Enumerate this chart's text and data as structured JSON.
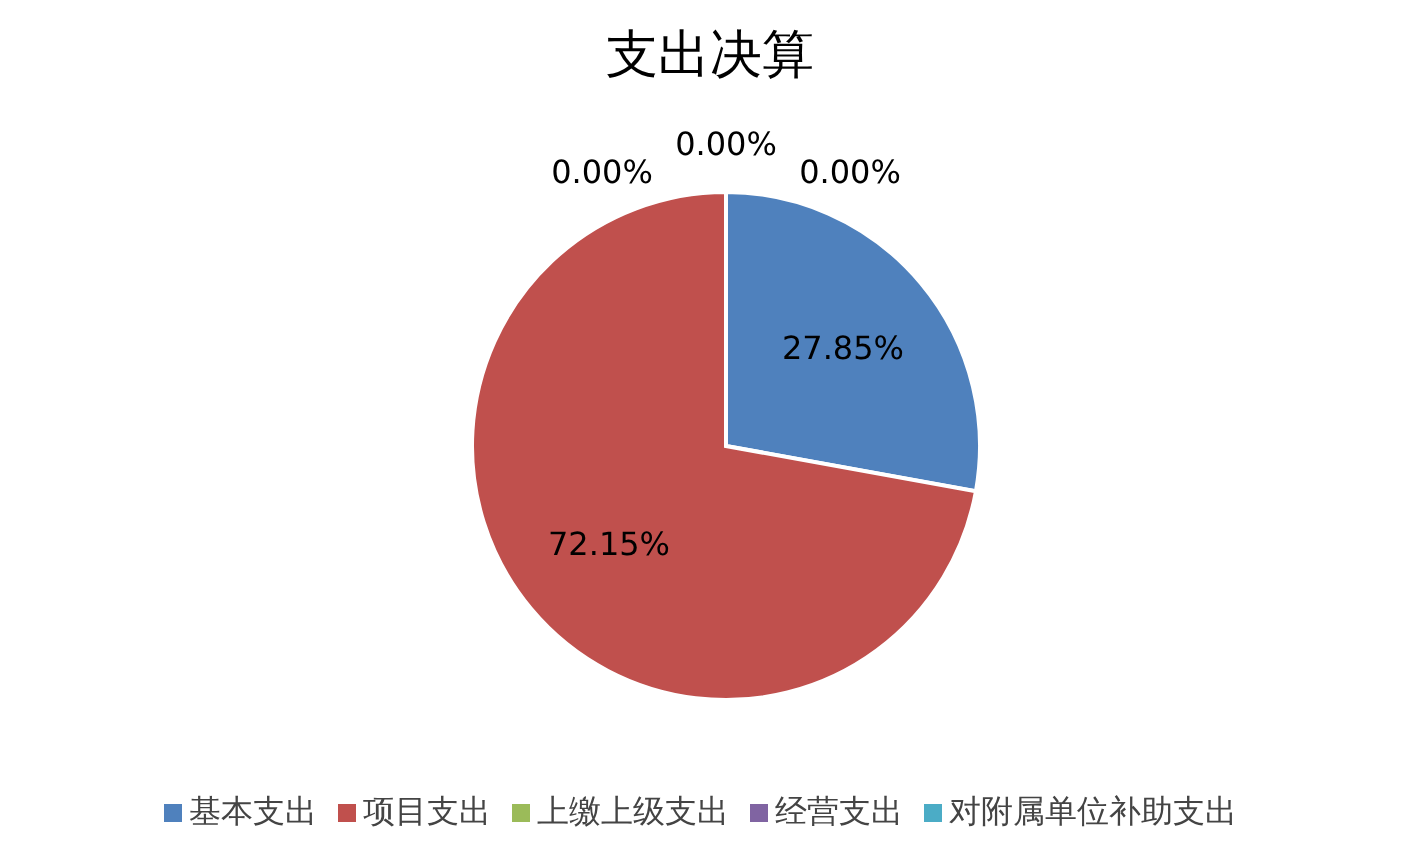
{
  "chart_data": {
    "type": "pie",
    "title": "支出决算",
    "categories": [
      "基本支出",
      "项目支出",
      "上缴上级支出",
      "经营支出",
      "对附属单位补助支出"
    ],
    "values": [
      27.85,
      72.15,
      0,
      0,
      0
    ],
    "colors": [
      "#4f81bd",
      "#c0504d",
      "#9bbb59",
      "#8064a2",
      "#4bacc6"
    ],
    "value_labels": [
      "27.85%",
      "72.15%",
      "0.00%",
      "0.00%",
      "0.00%"
    ],
    "legend": "bottom"
  }
}
